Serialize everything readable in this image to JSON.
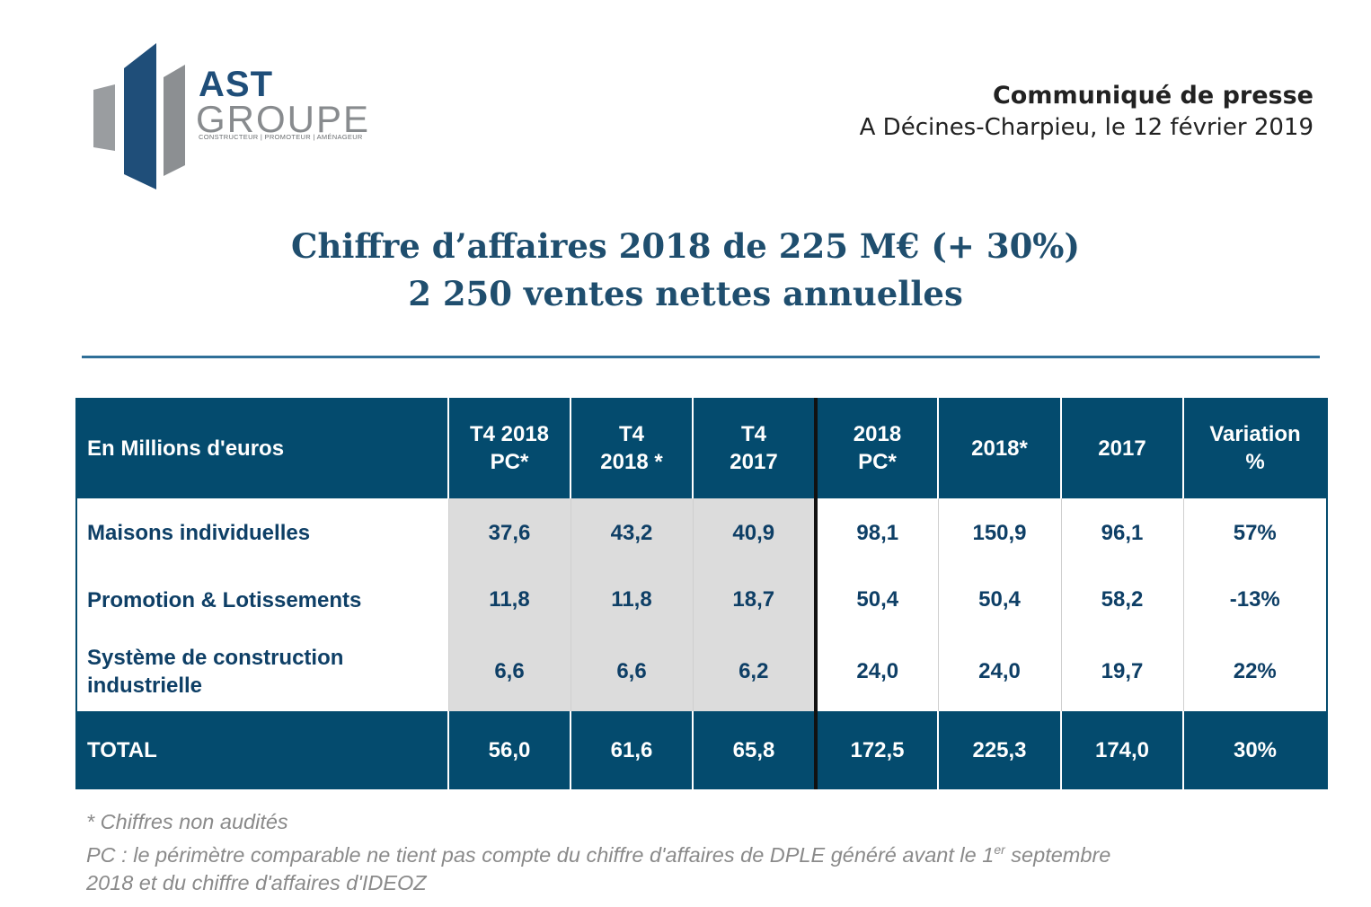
{
  "logo": {
    "word1": "AST",
    "word2": "GROUPE",
    "tagline": "CONSTRUCTEUR | PROMOTEUR | AMÉNAGEUR",
    "colors": {
      "dark": "#1f4e79",
      "grey": "#888b8e"
    }
  },
  "press": {
    "title": "Communiqué de presse",
    "date": "A Décines-Charpieu, le 12 février 2019"
  },
  "headline": {
    "line1": "Chiffre d’affaires 2018 de 225 M€ (+ 30%)",
    "line2": "2 250 ventes nettes annuelles"
  },
  "table": {
    "headers": {
      "label": "En Millions d'euros",
      "c1a": "T4 2018",
      "c1b": "PC*",
      "c2a": "T4",
      "c2b": "2018 *",
      "c3a": "T4",
      "c3b": "2017",
      "c4a": "2018",
      "c4b": "PC*",
      "c5": "2018*",
      "c6": "2017",
      "c7a": "Variation",
      "c7b": "%"
    },
    "rows": [
      {
        "label1": "Maisons individuelles",
        "label2": "",
        "values": [
          "37,6",
          "43,2",
          "40,9",
          "98,1",
          "150,9",
          "96,1",
          "57%"
        ]
      },
      {
        "label1": "Promotion & Lotissements",
        "label2": "",
        "values": [
          "11,8",
          "11,8",
          "18,7",
          "50,4",
          "50,4",
          "58,2",
          "-13%"
        ]
      },
      {
        "label1": "Système de construction",
        "label2": "industrielle",
        "values": [
          "6,6",
          "6,6",
          "6,2",
          "24,0",
          "24,0",
          "19,7",
          "22%"
        ]
      }
    ],
    "total": {
      "label": "TOTAL",
      "values": [
        "56,0",
        "61,6",
        "65,8",
        "172,5",
        "225,3",
        "174,0",
        "30%"
      ]
    },
    "colors": {
      "header": "#044b6e",
      "shade": "#dcdcdc",
      "text": "#0e3f66"
    }
  },
  "notes": {
    "line1": "* Chiffres non audités",
    "line2a": "PC : le périmètre comparable ne tient pas compte du chiffre d'affaires de DPLE généré avant le 1",
    "line2sup": "er",
    "line2b": " septembre",
    "line3": "2018 et du chiffre d'affaires d'IDEOZ"
  }
}
